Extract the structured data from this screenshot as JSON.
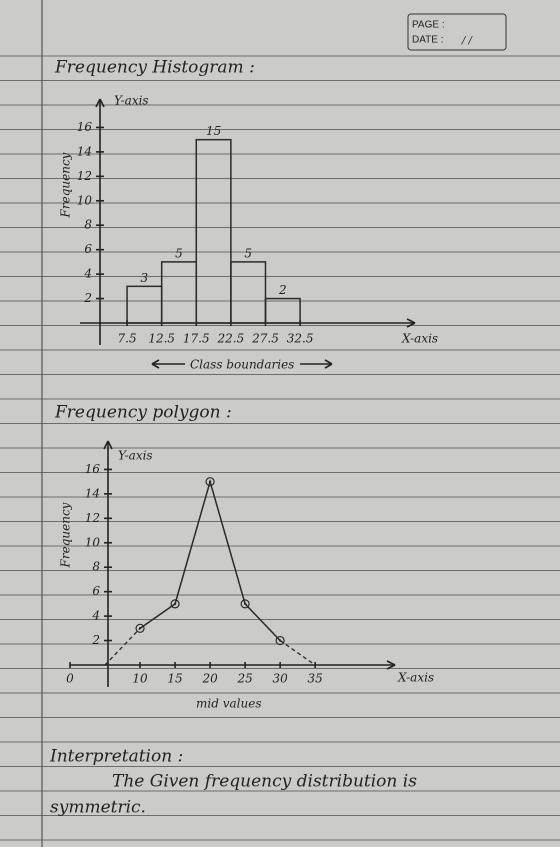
{
  "header": {
    "page_label": "PAGE :",
    "date_label": "DATE :",
    "date_value": "/ /"
  },
  "chart_data": [
    {
      "type": "histogram",
      "title": "Frequency Histogram :",
      "bins": [
        7.5,
        12.5,
        17.5,
        22.5,
        27.5,
        32.5
      ],
      "values": [
        3,
        5,
        15,
        5,
        2
      ],
      "xlim": [
        0.7,
        49.1
      ],
      "ylim": [
        0,
        18
      ],
      "xticks": [
        7.5,
        12.5,
        17.5,
        22.5,
        27.5,
        32.5
      ],
      "yticks": [
        2,
        4,
        6,
        8,
        10,
        12,
        14,
        16
      ],
      "y_axis_label": "Y-axis",
      "x_axis_label": "X-axis",
      "y_label": "Frequency",
      "x_label": "Class boundaries",
      "color": "#2a2a2a",
      "grid": false
    },
    {
      "type": "line",
      "title": "Frequency polygon :",
      "x": [
        5,
        10,
        15,
        20,
        25,
        30,
        35
      ],
      "values": [
        0,
        3,
        5,
        15,
        5,
        2,
        0
      ],
      "xlim": [
        0,
        46.4
      ],
      "ylim": [
        0,
        18
      ],
      "xticks": [
        0,
        10,
        15,
        20,
        25,
        30,
        35
      ],
      "yticks": [
        2,
        4,
        6,
        8,
        10,
        12,
        14,
        16
      ],
      "y_axis_label": "Y-axis",
      "x_axis_label": "X-axis",
      "y_label": "Frequency",
      "x_label": "mid values",
      "color": "#2a2a2a",
      "grid": false
    }
  ],
  "interpretation": {
    "heading": "Interpretation :",
    "lines": [
      "The Given frequency distribution is",
      "symmetric."
    ]
  }
}
